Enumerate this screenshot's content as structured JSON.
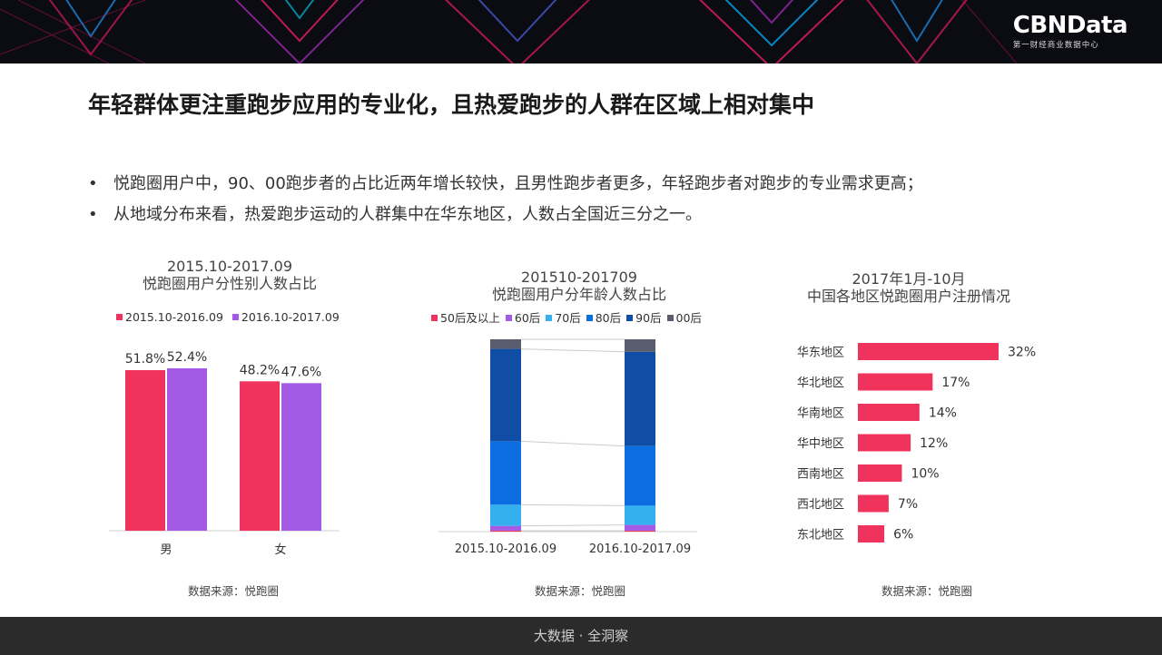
{
  "header": {
    "logo_main": "CBNData",
    "logo_sub": "第一财经商业数据中心"
  },
  "page_title": "年轻群体更注重跑步应用的专业化，且热爱跑步的人群在区域上相对集中",
  "bullets": [
    "悦跑圈用户中，90、00跑步者的占比近两年增长较快，且男性跑步者更多，年轻跑步者对跑步的专业需求更高；",
    "从地域分布来看，热爱跑步运动的人群集中在华东地区，人数占全国近三分之一。"
  ],
  "footer": "大数据 · 全洞察",
  "colors": {
    "pink": "#f0335c",
    "purple": "#a35be6"
  },
  "chart_data": [
    {
      "type": "bar",
      "title_line1": "2015.10-2017.09",
      "title_line2": "悦跑圈用户分性别人数占比",
      "categories": [
        "男",
        "女"
      ],
      "series": [
        {
          "name": "2015.10-2016.09",
          "color": "#f0335c",
          "values": [
            51.8,
            48.2
          ],
          "labels": [
            "51.8%",
            "48.2%"
          ]
        },
        {
          "name": "2016.10-2017.09",
          "color": "#a35be6",
          "values": [
            52.4,
            47.6
          ],
          "labels": [
            "52.4%",
            "47.6%"
          ]
        }
      ],
      "ylim": [
        0,
        60
      ],
      "source": "数据来源：悦跑圈"
    },
    {
      "type": "bar",
      "stacked": "100%",
      "title_line1": "201510-201709",
      "title_line2": "悦跑圈用户分年龄人数占比",
      "categories": [
        "2015.10-2016.09",
        "2016.10-2017.09"
      ],
      "series": [
        {
          "name": "50后及以上",
          "color": "#f0335c",
          "values": [
            0.5,
            0.5
          ]
        },
        {
          "name": "60后",
          "color": "#a35be6",
          "values": [
            2.5,
            3.0
          ]
        },
        {
          "name": "70后",
          "color": "#35b0ee",
          "values": [
            11,
            10
          ]
        },
        {
          "name": "80后",
          "color": "#0b6de0",
          "values": [
            33,
            31
          ]
        },
        {
          "name": "90后",
          "color": "#104ea5",
          "values": [
            48,
            49
          ]
        },
        {
          "name": "00后",
          "color": "#5a5d6e",
          "values": [
            5,
            6.5
          ]
        }
      ],
      "ylim": [
        0,
        100
      ],
      "source": "数据来源：悦跑圈"
    },
    {
      "type": "bar",
      "orientation": "horizontal",
      "title_line1": "2017年1月-10月",
      "title_line2": "中国各地区悦跑圈用户注册情况",
      "categories": [
        "华东地区",
        "华北地区",
        "华南地区",
        "华中地区",
        "西南地区",
        "西北地区",
        "东北地区"
      ],
      "values": [
        32,
        17,
        14,
        12,
        10,
        7,
        6
      ],
      "labels": [
        "32%",
        "17%",
        "14%",
        "12%",
        "10%",
        "7%",
        "6%"
      ],
      "color": "#f0335c",
      "xlim": [
        0,
        32
      ],
      "source": "数据来源：悦跑圈"
    }
  ]
}
